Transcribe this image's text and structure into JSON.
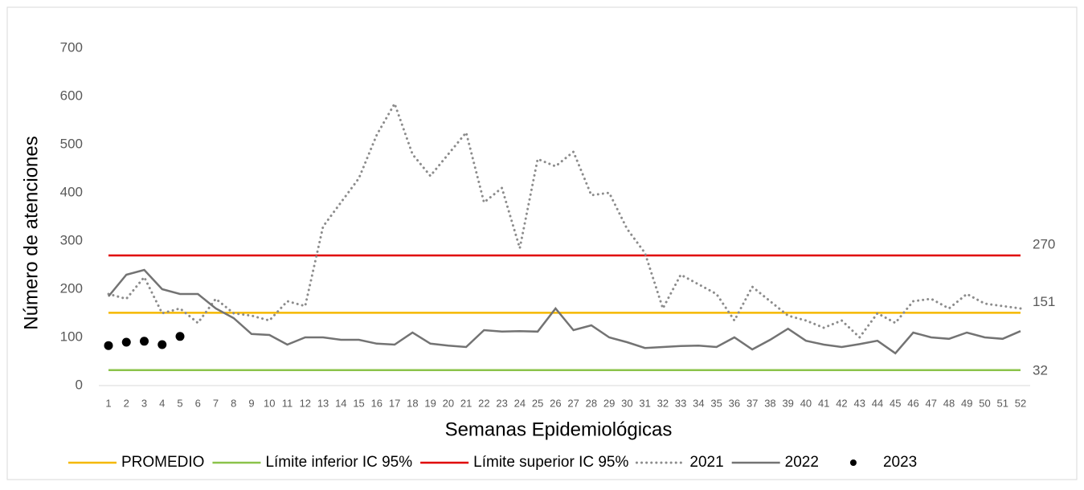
{
  "chart_data": {
    "type": "line",
    "ylabel": "Número de atenciones",
    "xlabel": "Semanas Epidemiológicas",
    "categories": [
      "1",
      "2",
      "3",
      "4",
      "5",
      "6",
      "7",
      "8",
      "9",
      "10",
      "11",
      "12",
      "13",
      "14",
      "15",
      "16",
      "17",
      "18",
      "19",
      "20",
      "21",
      "22",
      "23",
      "24",
      "25",
      "26",
      "27",
      "28",
      "29",
      "30",
      "31",
      "32",
      "33",
      "34",
      "35",
      "36",
      "37",
      "38",
      "39",
      "40",
      "41",
      "42",
      "43",
      "44",
      "45",
      "46",
      "47",
      "48",
      "49",
      "50",
      "51",
      "52"
    ],
    "ylim": [
      0,
      700
    ],
    "yticks": [
      0,
      100,
      200,
      300,
      400,
      500,
      600,
      700
    ],
    "grid": false,
    "legend": "bottom",
    "series": [
      {
        "name": "PROMEDIO",
        "color": "#f5b800",
        "style": "solid",
        "end_label": true,
        "values": [
          151,
          151,
          151,
          151,
          151,
          151,
          151,
          151,
          151,
          151,
          151,
          151,
          151,
          151,
          151,
          151,
          151,
          151,
          151,
          151,
          151,
          151,
          151,
          151,
          151,
          151,
          151,
          151,
          151,
          151,
          151,
          151,
          151,
          151,
          151,
          151,
          151,
          151,
          151,
          151,
          151,
          151,
          151,
          151,
          151,
          151,
          151,
          151,
          151,
          151,
          151,
          151
        ]
      },
      {
        "name": "Límite inferior IC 95%",
        "color": "#8bc34a",
        "style": "solid",
        "end_label": true,
        "values": [
          32,
          32,
          32,
          32,
          32,
          32,
          32,
          32,
          32,
          32,
          32,
          32,
          32,
          32,
          32,
          32,
          32,
          32,
          32,
          32,
          32,
          32,
          32,
          32,
          32,
          32,
          32,
          32,
          32,
          32,
          32,
          32,
          32,
          32,
          32,
          32,
          32,
          32,
          32,
          32,
          32,
          32,
          32,
          32,
          32,
          32,
          32,
          32,
          32,
          32,
          32,
          32
        ]
      },
      {
        "name": "Límite superior IC 95%",
        "color": "#e00000",
        "style": "solid",
        "end_label": true,
        "values": [
          270,
          270,
          270,
          270,
          270,
          270,
          270,
          270,
          270,
          270,
          270,
          270,
          270,
          270,
          270,
          270,
          270,
          270,
          270,
          270,
          270,
          270,
          270,
          270,
          270,
          270,
          270,
          270,
          270,
          270,
          270,
          270,
          270,
          270,
          270,
          270,
          270,
          270,
          270,
          270,
          270,
          270,
          270,
          270,
          270,
          270,
          270,
          270,
          270,
          270,
          270,
          270
        ]
      },
      {
        "name": "2021",
        "color": "#8c8c8c",
        "style": "dotted",
        "values": [
          190,
          180,
          225,
          150,
          160,
          130,
          180,
          150,
          145,
          135,
          175,
          165,
          330,
          380,
          430,
          520,
          585,
          480,
          435,
          480,
          525,
          380,
          410,
          285,
          470,
          455,
          485,
          395,
          400,
          325,
          275,
          160,
          230,
          210,
          190,
          135,
          205,
          175,
          145,
          135,
          120,
          135,
          100,
          150,
          130,
          175,
          180,
          160,
          190,
          170,
          165,
          160
        ]
      },
      {
        "name": "2022",
        "color": "#737373",
        "style": "solid",
        "values": [
          185,
          230,
          240,
          200,
          190,
          190,
          160,
          140,
          107,
          105,
          85,
          100,
          100,
          95,
          95,
          87,
          85,
          110,
          87,
          83,
          80,
          115,
          112,
          113,
          112,
          160,
          115,
          125,
          100,
          90,
          78,
          80,
          82,
          83,
          80,
          100,
          75,
          95,
          118,
          93,
          85,
          80,
          86,
          93,
          67,
          110,
          100,
          97,
          110,
          100,
          97,
          113
        ]
      },
      {
        "name": "2023",
        "color": "#000000",
        "style": "markers",
        "values": [
          83,
          90,
          92,
          85,
          102,
          null,
          null,
          null,
          null,
          null,
          null,
          null,
          null,
          null,
          null,
          null,
          null,
          null,
          null,
          null,
          null,
          null,
          null,
          null,
          null,
          null,
          null,
          null,
          null,
          null,
          null,
          null,
          null,
          null,
          null,
          null,
          null,
          null,
          null,
          null,
          null,
          null,
          null,
          null,
          null,
          null,
          null,
          null,
          null,
          null,
          null,
          null
        ]
      }
    ]
  }
}
